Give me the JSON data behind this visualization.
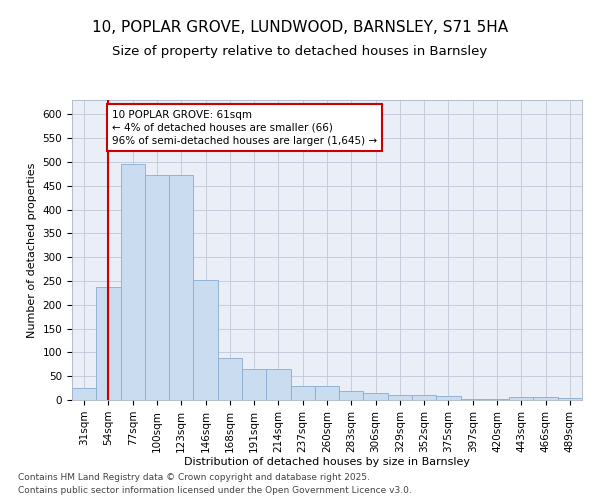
{
  "title_line1": "10, POPLAR GROVE, LUNDWOOD, BARNSLEY, S71 5HA",
  "title_line2": "Size of property relative to detached houses in Barnsley",
  "xlabel": "Distribution of detached houses by size in Barnsley",
  "ylabel": "Number of detached properties",
  "categories": [
    "31sqm",
    "54sqm",
    "77sqm",
    "100sqm",
    "123sqm",
    "146sqm",
    "168sqm",
    "191sqm",
    "214sqm",
    "237sqm",
    "260sqm",
    "283sqm",
    "306sqm",
    "329sqm",
    "352sqm",
    "375sqm",
    "397sqm",
    "420sqm",
    "443sqm",
    "466sqm",
    "489sqm"
  ],
  "values": [
    25,
    238,
    495,
    472,
    472,
    252,
    88,
    65,
    65,
    30,
    30,
    18,
    14,
    11,
    10,
    8,
    3,
    3,
    6,
    6,
    5
  ],
  "bar_color": "#c9dcf0",
  "bar_edge_color": "#8aabcf",
  "vline_x": 1.0,
  "vline_color": "#cc0000",
  "annotation_line1": "10 POPLAR GROVE: 61sqm",
  "annotation_line2": "← 4% of detached houses are smaller (66)",
  "annotation_line3": "96% of semi-detached houses are larger (1,645) →",
  "annotation_box_color": "#cc0000",
  "ylim": [
    0,
    630
  ],
  "yticks": [
    0,
    50,
    100,
    150,
    200,
    250,
    300,
    350,
    400,
    450,
    500,
    550,
    600
  ],
  "plot_bg_color": "#eaeff7",
  "footer_line1": "Contains HM Land Registry data © Crown copyright and database right 2025.",
  "footer_line2": "Contains public sector information licensed under the Open Government Licence v3.0.",
  "title_fontsize": 11,
  "subtitle_fontsize": 9.5,
  "axis_label_fontsize": 8,
  "tick_fontsize": 7.5,
  "annotation_fontsize": 7.5,
  "footer_fontsize": 6.5
}
